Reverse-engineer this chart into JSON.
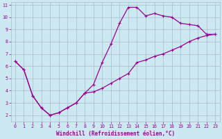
{
  "xlabel": "Windchill (Refroidissement éolien,°C)",
  "bg_color": "#cce8f0",
  "line_color": "#990099",
  "grid_color": "#aabbcc",
  "xlim": [
    -0.5,
    23.5
  ],
  "ylim": [
    1.5,
    11.2
  ],
  "xticks": [
    0,
    1,
    2,
    3,
    4,
    5,
    6,
    7,
    8,
    9,
    10,
    11,
    12,
    13,
    14,
    15,
    16,
    17,
    18,
    19,
    20,
    21,
    22,
    23
  ],
  "yticks": [
    2,
    3,
    4,
    5,
    6,
    7,
    8,
    9,
    10,
    11
  ],
  "line1_x": [
    0,
    1,
    2,
    3,
    4,
    5,
    6,
    7,
    8,
    9,
    10,
    11,
    12,
    13,
    14,
    15,
    16,
    17,
    18,
    19,
    20,
    21,
    22,
    23
  ],
  "line1_y": [
    6.4,
    5.7,
    3.6,
    2.6,
    2.0,
    2.2,
    2.6,
    3.0,
    3.8,
    4.5,
    6.3,
    7.8,
    9.5,
    10.8,
    10.8,
    10.1,
    10.3,
    10.1,
    10.0,
    9.5,
    9.4,
    9.3,
    8.6,
    8.6
  ],
  "line2_x": [
    0,
    1,
    2,
    3,
    4,
    5,
    6,
    7,
    8,
    9,
    10,
    11,
    12,
    13,
    14,
    15,
    16,
    17,
    18,
    19,
    20,
    21,
    22,
    23
  ],
  "line2_y": [
    6.4,
    5.7,
    3.6,
    2.6,
    2.0,
    2.2,
    2.6,
    3.0,
    3.8,
    3.9,
    4.2,
    4.6,
    5.0,
    5.4,
    6.3,
    6.5,
    6.8,
    7.0,
    7.3,
    7.6,
    8.0,
    8.3,
    8.5,
    8.6
  ],
  "marker_size": 2.5,
  "line_width": 0.9,
  "tick_fontsize": 4.8,
  "xlabel_fontsize": 5.5
}
